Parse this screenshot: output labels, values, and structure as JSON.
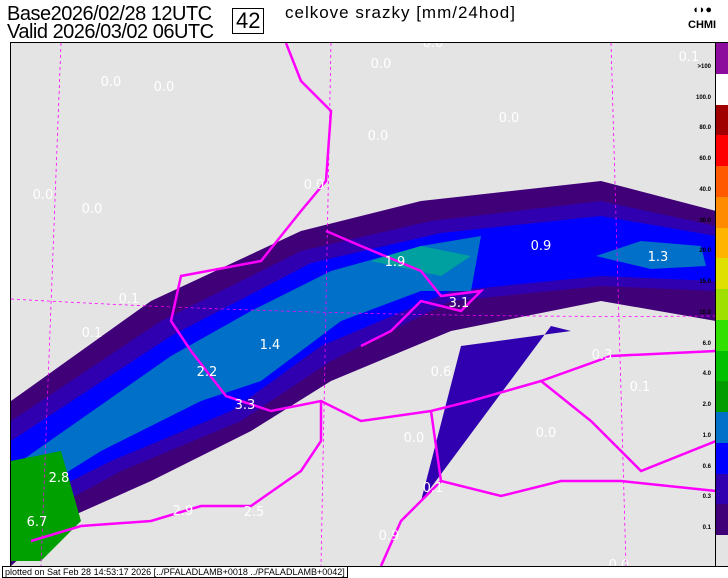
{
  "header": {
    "base_label": "Base",
    "base_time": "2026/02/28 12UTC",
    "valid_label": "Valid",
    "valid_time": "2026/03/02 06UTC",
    "forecast_hour": "42",
    "title": "celkove srazky [mm/24hod]",
    "logo_text": "CHMI"
  },
  "map_labels": [
    "0.0",
    "0.0",
    "0.0",
    "0.1",
    "0.0",
    "0.0",
    "0.0",
    "0.0",
    "0.0",
    "0.0",
    "1.9",
    "0.9",
    "1.3",
    "0.1",
    "3.1",
    "0.1",
    "1.4",
    "0.3",
    "0.6",
    "2.2",
    "0.1",
    "3.3",
    "0.0",
    "0.0",
    "2.8",
    "0.1",
    "2.9",
    "2.5",
    "6.7",
    "0.9",
    "0.0"
  ],
  "legend": {
    "labels": [
      ">100",
      "100.0",
      "80.0",
      "60.0",
      "40.0",
      "30.0",
      "20.0",
      "15.0",
      "10.0",
      "6.0",
      "4.0",
      "2.0",
      "1.0",
      "0.6",
      "0.3",
      "0.1"
    ],
    "colors": [
      "#8c0a9c",
      "#ffffff",
      "#a00000",
      "#ff0000",
      "#ff5a00",
      "#ff8c00",
      "#ffb400",
      "#e0e000",
      "#a0e000",
      "#30e000",
      "#00c000",
      "#009c00",
      "#0070c8",
      "#0000ff",
      "#3000b0",
      "#400078",
      "#e4e4e4"
    ]
  },
  "colors": {
    "background": "#e4e4e4",
    "border": "#ff00ff",
    "grid": "#ff00ff"
  },
  "footer": "plotted on Sat Feb 28 14:53:17 2026 [../PFALADLAMB+0018 ../PFALADLAMB+0042]"
}
